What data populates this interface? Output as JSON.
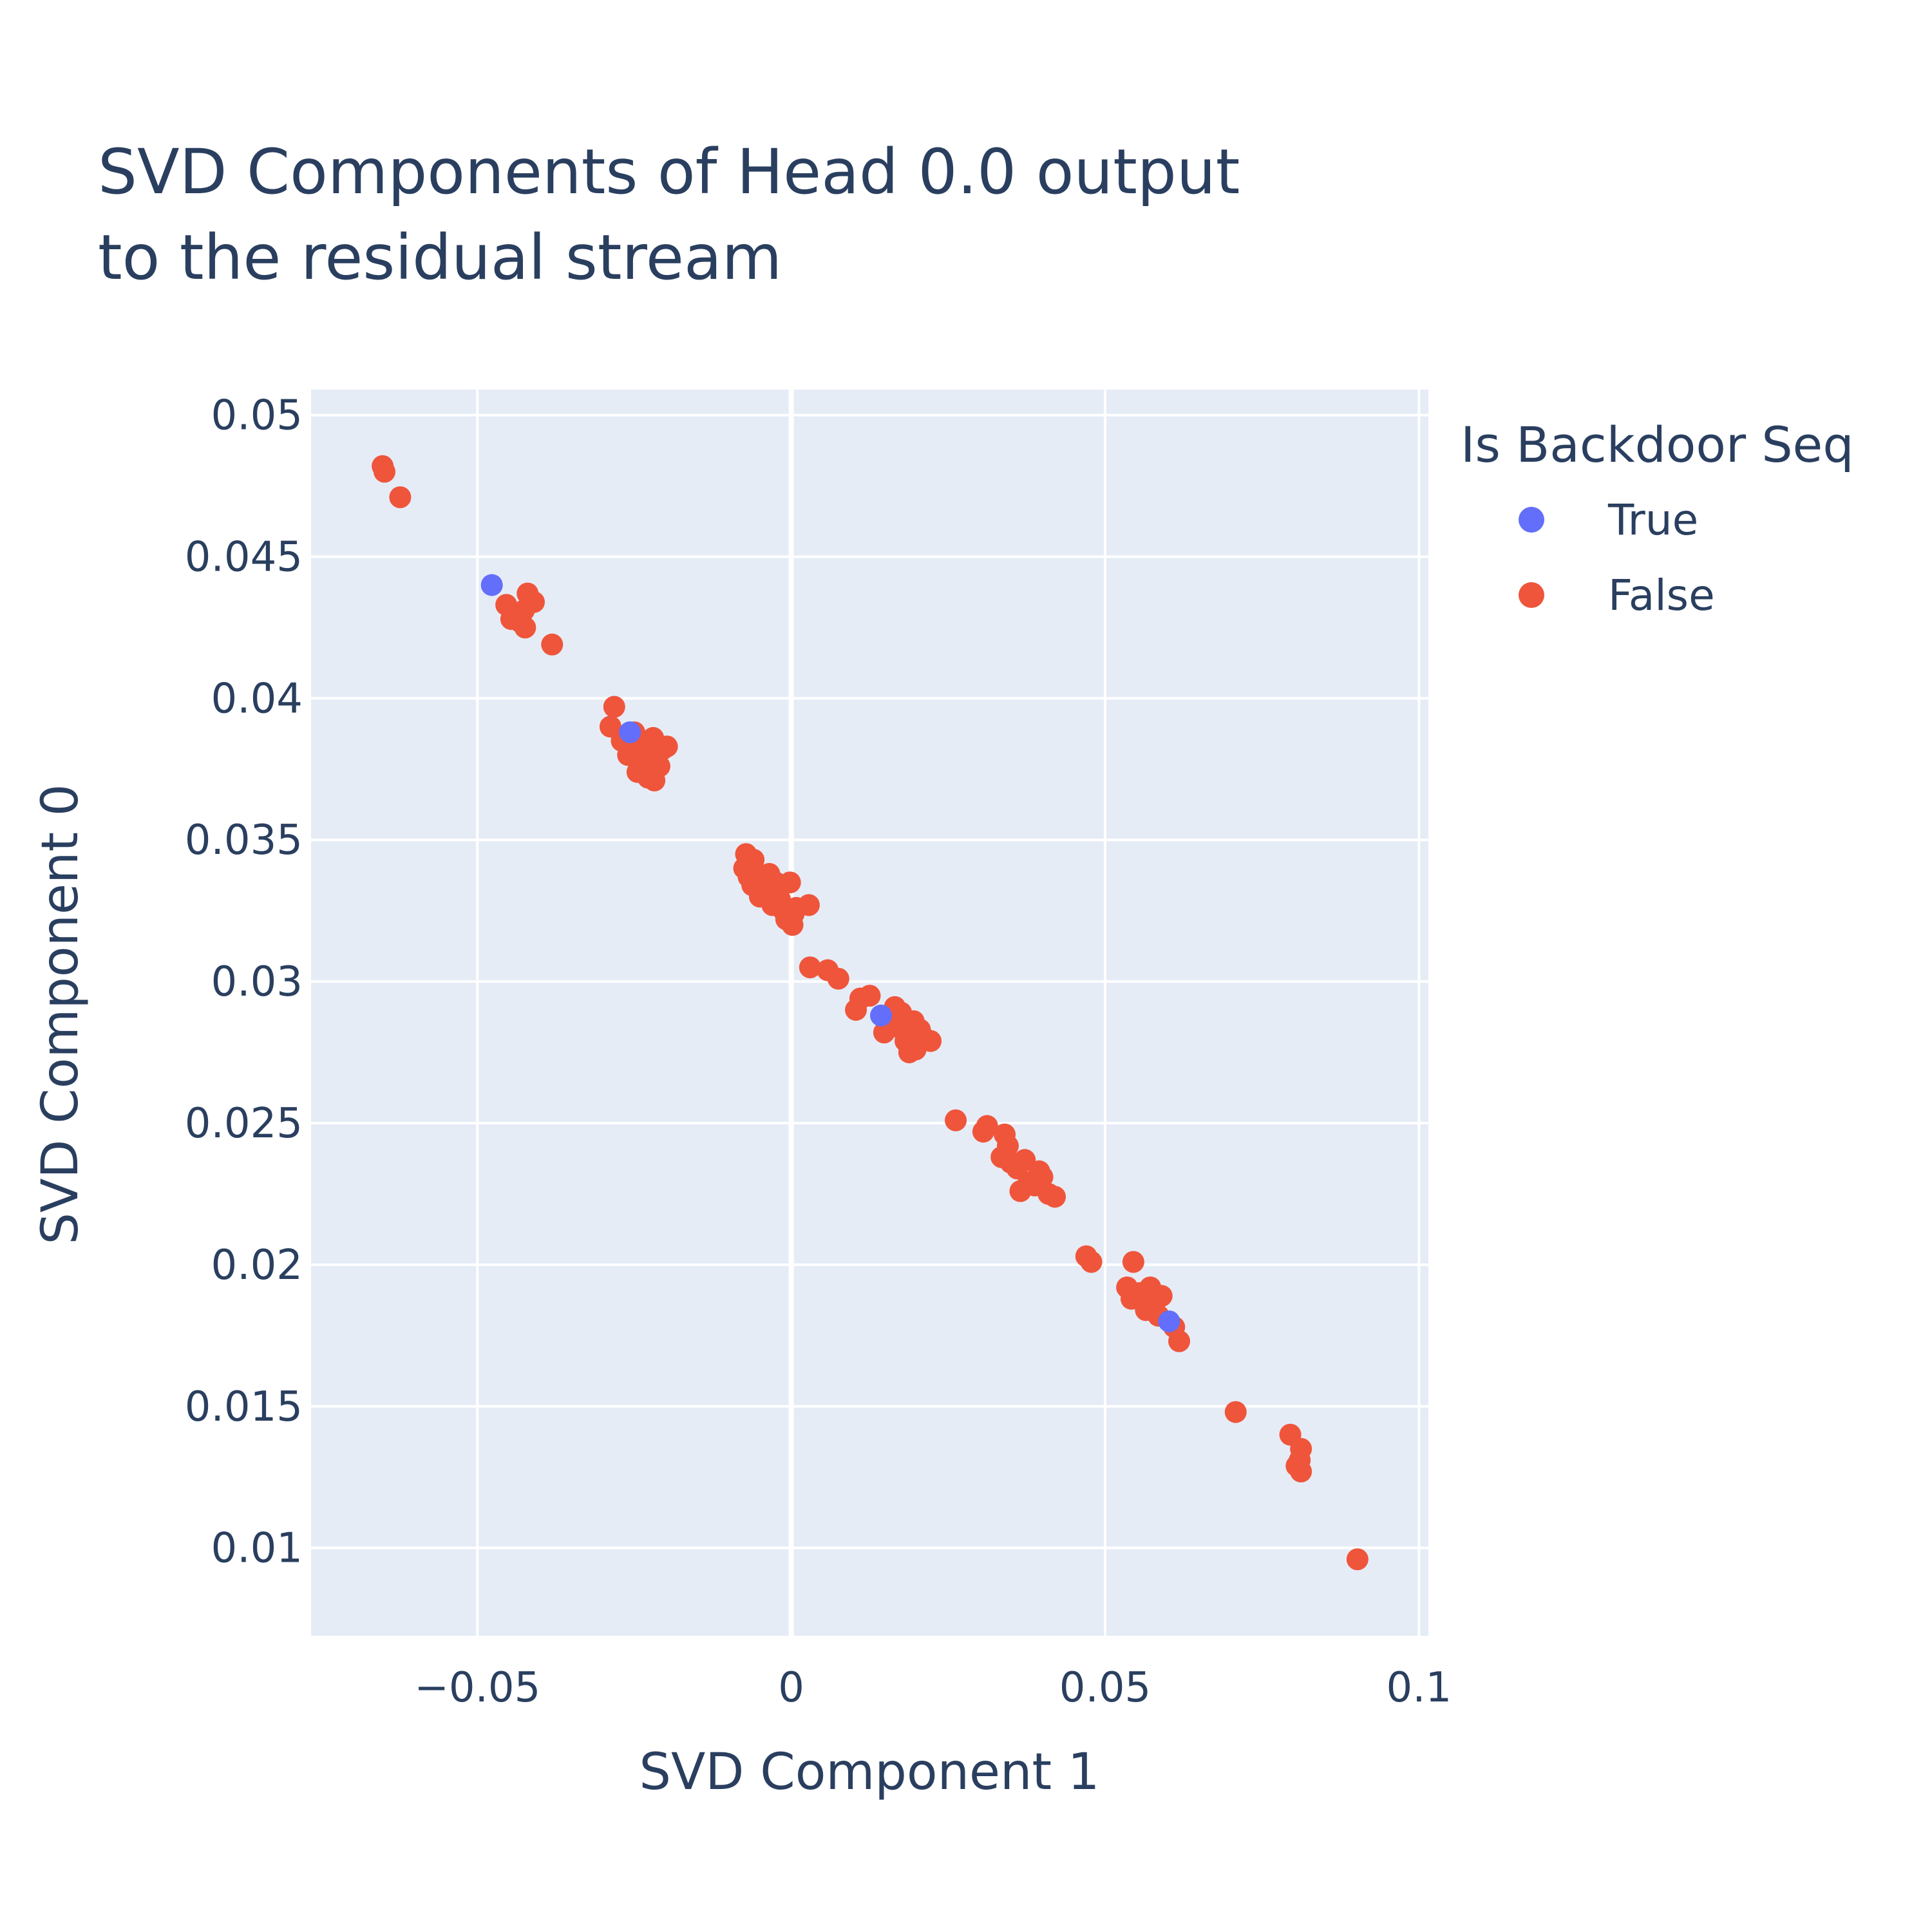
{
  "chart_data": {
    "type": "scatter",
    "title_lines": [
      "SVD Components of Head 0.0 output",
      "to the residual stream"
    ],
    "xlabel": "SVD Component 1",
    "ylabel": "SVD Component 0",
    "xlim": [
      -0.0765,
      0.1015
    ],
    "ylim": [
      0.0069,
      0.0509
    ],
    "x_ticks": [
      -0.05,
      0,
      0.05,
      0.1
    ],
    "x_tick_labels": [
      "−0.05",
      "0",
      "0.05",
      "0.1"
    ],
    "y_ticks": [
      0.01,
      0.015,
      0.02,
      0.025,
      0.03,
      0.035,
      0.04,
      0.045,
      0.05
    ],
    "y_tick_labels": [
      "0.01",
      "0.015",
      "0.02",
      "0.025",
      "0.03",
      "0.035",
      "0.04",
      "0.045",
      "0.05"
    ],
    "grid": true,
    "plot_bg": "#e5ecf6",
    "legend": {
      "title": "Is Backdoor Seq",
      "position": "right"
    },
    "series": [
      {
        "name": "True",
        "color": "#636efa",
        "points": [
          [
            -0.0477,
            0.044
          ],
          [
            -0.0257,
            0.0388
          ],
          [
            0.0143,
            0.0288
          ],
          [
            0.0602,
            0.018
          ]
        ]
      },
      {
        "name": "False",
        "color": "#ef553b",
        "points": [
          [
            -0.0651,
            0.0482
          ],
          [
            -0.0648,
            0.048
          ],
          [
            -0.0623,
            0.0471
          ],
          [
            -0.0454,
            0.0433
          ],
          [
            -0.0446,
            0.0428
          ],
          [
            -0.0432,
            0.0427
          ],
          [
            -0.0424,
            0.0425
          ],
          [
            -0.042,
            0.0437
          ],
          [
            -0.041,
            0.0434
          ],
          [
            -0.0426,
            0.0431
          ],
          [
            -0.044,
            0.043
          ],
          [
            -0.0381,
            0.0419
          ],
          [
            -0.0282,
            0.0397
          ],
          [
            -0.0288,
            0.039
          ],
          [
            -0.027,
            0.0385
          ],
          [
            -0.026,
            0.038
          ],
          [
            -0.025,
            0.0388
          ],
          [
            -0.0243,
            0.0383
          ],
          [
            -0.0236,
            0.0377
          ],
          [
            -0.0228,
            0.0372
          ],
          [
            -0.0218,
            0.0371
          ],
          [
            -0.021,
            0.0376
          ],
          [
            -0.0205,
            0.0382
          ],
          [
            -0.022,
            0.0386
          ],
          [
            -0.0198,
            0.0383
          ],
          [
            -0.0245,
            0.0374
          ],
          [
            -0.0232,
            0.0381
          ],
          [
            -0.0262,
            0.0384
          ],
          [
            -0.0072,
            0.0345
          ],
          [
            -0.006,
            0.0343
          ],
          [
            -0.0075,
            0.034
          ],
          [
            -0.0068,
            0.0337
          ],
          [
            -0.0055,
            0.0336
          ],
          [
            -0.005,
            0.033
          ],
          [
            -0.004,
            0.0333
          ],
          [
            -0.0035,
            0.0338
          ],
          [
            -0.0025,
            0.0335
          ],
          [
            -0.003,
            0.0327
          ],
          [
            -0.0018,
            0.0329
          ],
          [
            -0.0008,
            0.0322
          ],
          [
            0.0002,
            0.032
          ],
          [
            0.0008,
            0.0326
          ],
          [
            0.0028,
            0.0327
          ],
          [
            -0.0002,
            0.0335
          ],
          [
            -0.0062,
            0.0334
          ],
          [
            -0.0045,
            0.0331
          ],
          [
            -0.0012,
            0.0325
          ],
          [
            0.0004,
            0.0324
          ],
          [
            0.003,
            0.0305
          ],
          [
            0.0058,
            0.0304
          ],
          [
            0.0075,
            0.0301
          ],
          [
            0.0103,
            0.029
          ],
          [
            0.011,
            0.0294
          ],
          [
            0.0125,
            0.0295
          ],
          [
            0.0148,
            0.0282
          ],
          [
            0.016,
            0.0285
          ],
          [
            0.0165,
            0.0291
          ],
          [
            0.0175,
            0.0289
          ],
          [
            0.0182,
            0.0279
          ],
          [
            0.0188,
            0.0275
          ],
          [
            0.0195,
            0.0286
          ],
          [
            0.0205,
            0.0283
          ],
          [
            0.0212,
            0.028
          ],
          [
            0.0222,
            0.0279
          ],
          [
            0.0198,
            0.0276
          ],
          [
            0.017,
            0.0284
          ],
          [
            0.0262,
            0.0251
          ],
          [
            0.0306,
            0.0247
          ],
          [
            0.0312,
            0.0249
          ],
          [
            0.034,
            0.0246
          ],
          [
            0.0345,
            0.0242
          ],
          [
            0.0335,
            0.0238
          ],
          [
            0.035,
            0.0236
          ],
          [
            0.036,
            0.0234
          ],
          [
            0.0372,
            0.0237
          ],
          [
            0.0378,
            0.0229
          ],
          [
            0.0365,
            0.0226
          ],
          [
            0.0388,
            0.0228
          ],
          [
            0.04,
            0.0231
          ],
          [
            0.041,
            0.0225
          ],
          [
            0.042,
            0.0224
          ],
          [
            0.0395,
            0.0233
          ],
          [
            0.047,
            0.0203
          ],
          [
            0.0478,
            0.0201
          ],
          [
            0.0545,
            0.0201
          ],
          [
            0.0535,
            0.0192
          ],
          [
            0.0542,
            0.0188
          ],
          [
            0.0555,
            0.019
          ],
          [
            0.0565,
            0.0184
          ],
          [
            0.0572,
            0.0192
          ],
          [
            0.058,
            0.0187
          ],
          [
            0.059,
            0.0189
          ],
          [
            0.0585,
            0.0182
          ],
          [
            0.061,
            0.0178
          ],
          [
            0.0618,
            0.0173
          ],
          [
            0.0708,
            0.0148
          ],
          [
            0.0795,
            0.014
          ],
          [
            0.0812,
            0.0135
          ],
          [
            0.081,
            0.0131
          ],
          [
            0.0805,
            0.0129
          ],
          [
            0.0812,
            0.0127
          ],
          [
            0.0902,
            0.0096
          ]
        ]
      }
    ]
  }
}
